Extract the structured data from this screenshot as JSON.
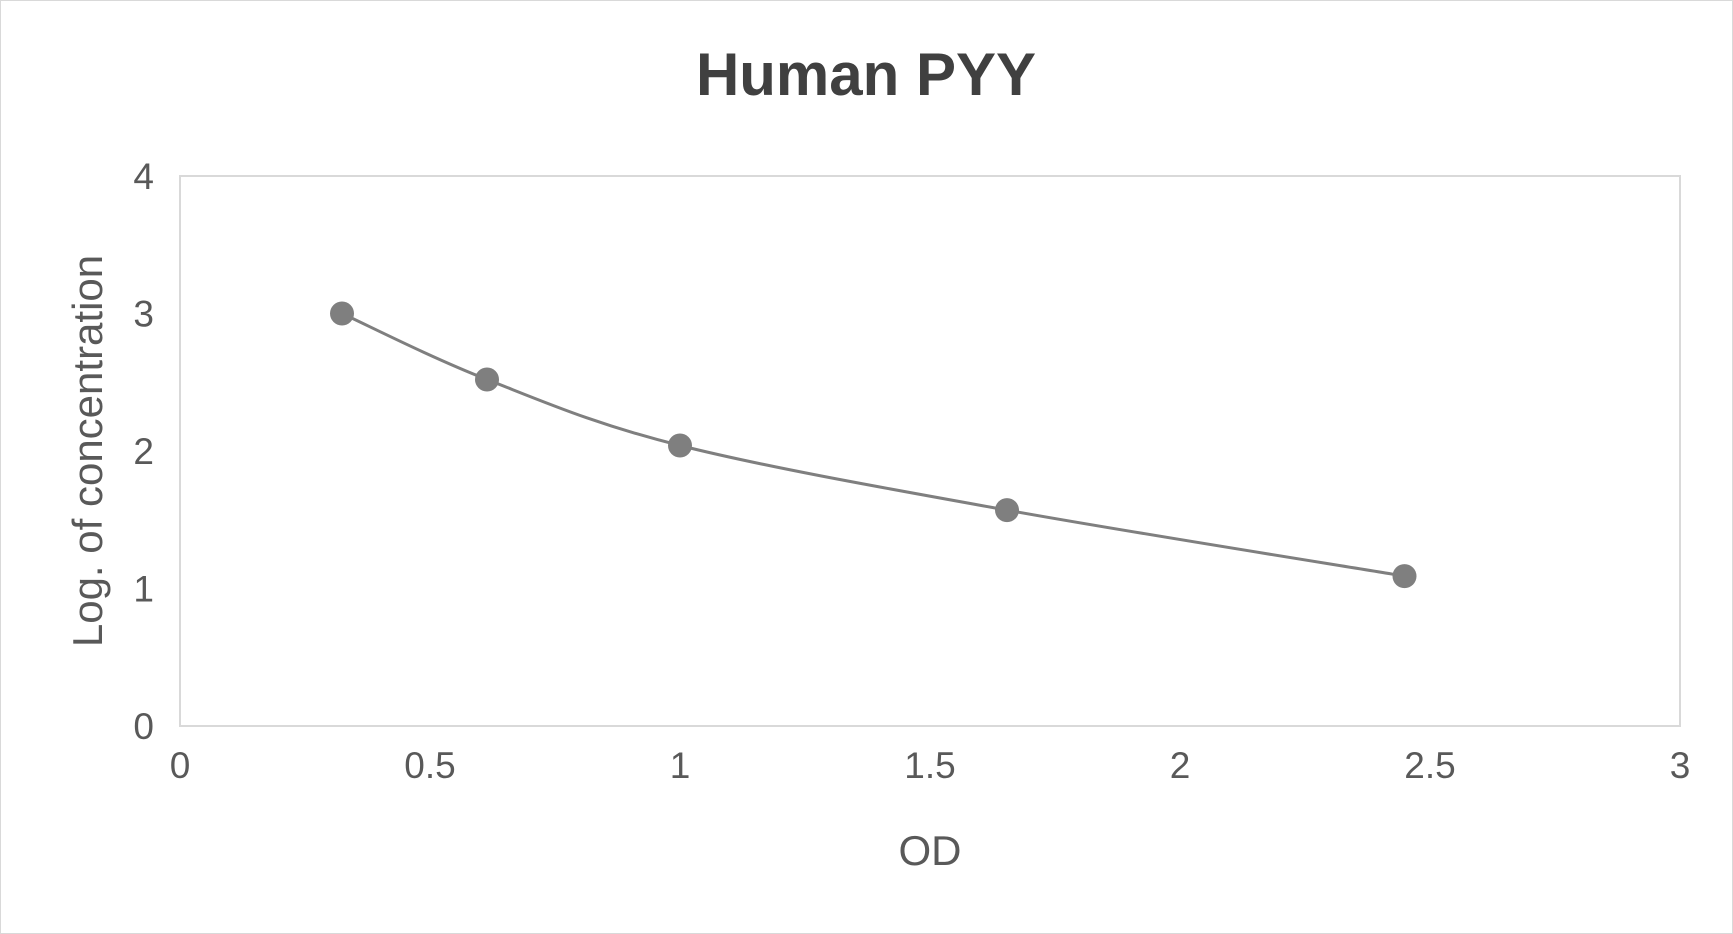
{
  "chart_data": {
    "type": "scatter",
    "title": "Human PYY",
    "xlabel": "OD",
    "ylabel": "Log. of concentration",
    "xlim": [
      0,
      3
    ],
    "ylim": [
      0,
      4
    ],
    "x_ticks": [
      "0",
      "0.5",
      "1",
      "1.5",
      "2",
      "2.5",
      "3"
    ],
    "y_ticks": [
      "0",
      "1",
      "2",
      "3",
      "4"
    ],
    "grid": false,
    "legend": "none",
    "smooth_line": true,
    "color": "#7f7f7f",
    "series": [
      {
        "x": [
          0.324,
          0.614,
          1.0,
          1.654,
          2.449
        ],
        "y": [
          3.0,
          2.52,
          2.04,
          1.57,
          1.09
        ]
      }
    ]
  }
}
